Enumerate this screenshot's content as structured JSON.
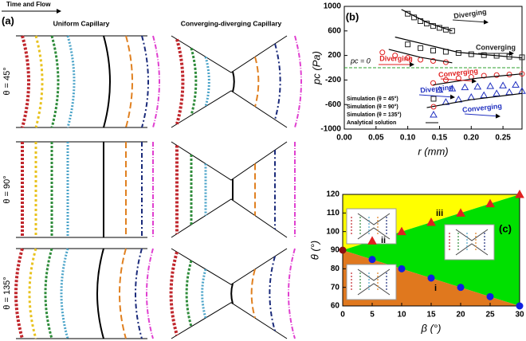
{
  "panel_a": {
    "label": "(a)",
    "arrow_label": "Time and Flow",
    "columns": [
      "Uniform Capillary",
      "Converging-diverging Capillary"
    ],
    "rows": [
      "θ = 45°",
      "θ = 90°",
      "θ = 135°"
    ]
  },
  "chart_data": [
    {
      "type": "scatter",
      "label": "(b)",
      "xlabel": "r (mm)",
      "ylabel": "pc (Pa)",
      "xlim": [
        0,
        0.28
      ],
      "ylim": [
        -1000,
        1000
      ],
      "xticks": [
        {
          "value": 0,
          "label": "0.00"
        },
        0.05,
        {
          "value": 0.1,
          "label": "0.10"
        },
        0.15,
        {
          "value": 0.2,
          "label": "0.20"
        },
        0.25
      ],
      "yticks": [
        -1000,
        -600,
        -200,
        200,
        600,
        1000
      ],
      "reference_line": {
        "value": 0,
        "label": "pc = 0",
        "color": "#2ca02c"
      },
      "legend": "lower left",
      "series": [
        {
          "name": "Simulation (θ = 45°)",
          "marker": "square",
          "filled": false,
          "color": "#222222",
          "x": [
            0.1,
            0.11,
            0.12,
            0.13,
            0.14,
            0.15,
            0.16,
            0.17,
            0.1,
            0.12,
            0.14,
            0.16,
            0.18,
            0.2,
            0.22,
            0.24,
            0.26,
            0.28
          ],
          "values": [
            880,
            820,
            760,
            720,
            680,
            650,
            620,
            600,
            380,
            320,
            280,
            260,
            240,
            220,
            205,
            195,
            180,
            170
          ]
        },
        {
          "name": "Simulation (θ = 90°)",
          "marker": "circle",
          "filled": false,
          "color": "#e02020",
          "x": [
            0.06,
            0.08,
            0.1,
            0.12,
            0.14,
            0.16,
            0.14,
            0.16,
            0.18,
            0.2,
            0.22,
            0.24,
            0.26,
            0.28
          ],
          "values": [
            250,
            200,
            160,
            130,
            110,
            90,
            -250,
            -200,
            -170,
            -150,
            -130,
            -120,
            -110,
            -100
          ]
        },
        {
          "name": "Simulation (θ = 135°)",
          "marker": "triangle",
          "filled": false,
          "color": "#2030c0",
          "x": [
            0.16,
            0.18,
            0.2,
            0.22,
            0.24,
            0.26,
            0.28,
            0.15,
            0.17,
            0.19,
            0.21,
            0.23,
            0.25,
            0.27
          ],
          "values": [
            -560,
            -520,
            -480,
            -450,
            -420,
            -400,
            -380,
            -360,
            -340,
            -320,
            -310,
            -300,
            -290,
            -280
          ]
        },
        {
          "name": "Analytical solution",
          "type": "line",
          "color": "#000000",
          "x": [
            0.09,
            0.13,
            0.17,
            null,
            0.08,
            0.18,
            0.28,
            null,
            0.07,
            0.12,
            0.17,
            null,
            0.14,
            0.21,
            0.28,
            null,
            0.13,
            0.2,
            0.28
          ],
          "values": [
            950,
            740,
            600,
            null,
            500,
            250,
            160,
            null,
            300,
            170,
            80,
            null,
            -280,
            -170,
            -100,
            null,
            -650,
            -520,
            -420
          ]
        }
      ],
      "annotations": [
        {
          "text": "Diverging",
          "color": "#222222"
        },
        {
          "text": "Converging",
          "color": "#222222"
        },
        {
          "text": "Diverging",
          "color": "#e02020"
        },
        {
          "text": "Converging",
          "color": "#e02020"
        },
        {
          "text": "Diverging",
          "color": "#2030c0"
        },
        {
          "text": "Converging",
          "color": "#2030c0"
        }
      ]
    },
    {
      "type": "scatter",
      "label": "(c)",
      "xlabel": "β (°)",
      "ylabel": "θ (°)",
      "xlim": [
        0,
        30
      ],
      "ylim": [
        60,
        120
      ],
      "xticks": [
        0,
        5,
        10,
        15,
        20,
        25,
        30
      ],
      "yticks": [
        60,
        70,
        80,
        90,
        100,
        110,
        120
      ],
      "regions": [
        {
          "label": "iii",
          "color": "#ffff00"
        },
        {
          "label": "ii",
          "color": "#00e000"
        },
        {
          "label": "i",
          "color": "#e0781e"
        }
      ],
      "series": [
        {
          "marker": "circle",
          "filled": true,
          "color": "#8b1010",
          "x": [
            0
          ],
          "values": [
            90
          ]
        },
        {
          "marker": "triangle",
          "filled": true,
          "color": "#e02020",
          "x": [
            5,
            10,
            15,
            20,
            25,
            30
          ],
          "values": [
            95,
            100,
            105,
            110,
            115,
            120
          ]
        },
        {
          "marker": "circle",
          "filled": true,
          "color": "#1020e0",
          "x": [
            5,
            10,
            15,
            20,
            25,
            30
          ],
          "values": [
            85,
            80,
            75,
            70,
            65,
            60
          ]
        }
      ]
    }
  ]
}
